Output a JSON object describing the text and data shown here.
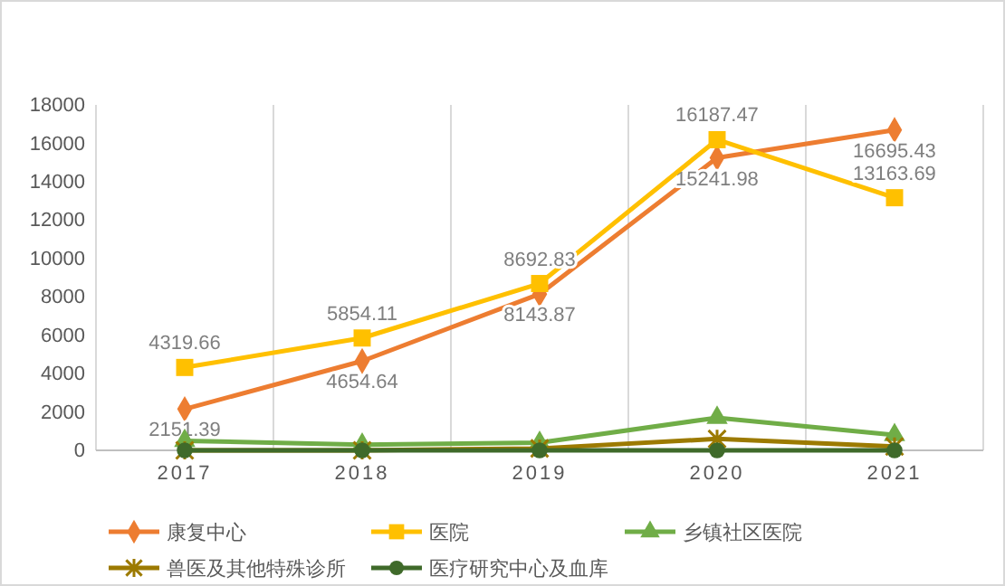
{
  "chart_data": {
    "type": "line",
    "categories": [
      "2017",
      "2018",
      "2019",
      "2020",
      "2021"
    ],
    "ylim": [
      0,
      18000
    ],
    "yticks": [
      0,
      2000,
      4000,
      6000,
      8000,
      10000,
      12000,
      14000,
      16000,
      18000
    ],
    "grid": "x",
    "legend": "bottom",
    "series": [
      {
        "name": "康复中心",
        "color": "#ed7d31",
        "marker": "diamond",
        "values": [
          2151.39,
          4654.64,
          8143.87,
          15241.98,
          16695.43
        ],
        "value_labels": [
          "2151.39",
          "4654.64",
          "8143.87",
          "15241.98",
          "16695.43"
        ]
      },
      {
        "name": "医院",
        "color": "#ffc000",
        "marker": "square",
        "values": [
          4319.66,
          5854.11,
          8692.83,
          16187.47,
          13163.69
        ],
        "value_labels": [
          "4319.66",
          "5854.11",
          "8692.83",
          "16187.47",
          "13163.69"
        ]
      },
      {
        "name": "乡镇社区医院",
        "color": "#70ad47",
        "marker": "triangle",
        "values": [
          500,
          300,
          400,
          1700,
          800
        ]
      },
      {
        "name": "兽医及其他特殊诊所",
        "color": "#9c7a00",
        "marker": "cross",
        "values": [
          0,
          0,
          100,
          600,
          200
        ]
      },
      {
        "name": "医疗研究中心及血库",
        "color": "#3f6a2a",
        "marker": "circle",
        "values": [
          0,
          0,
          0,
          0,
          0
        ]
      }
    ]
  }
}
